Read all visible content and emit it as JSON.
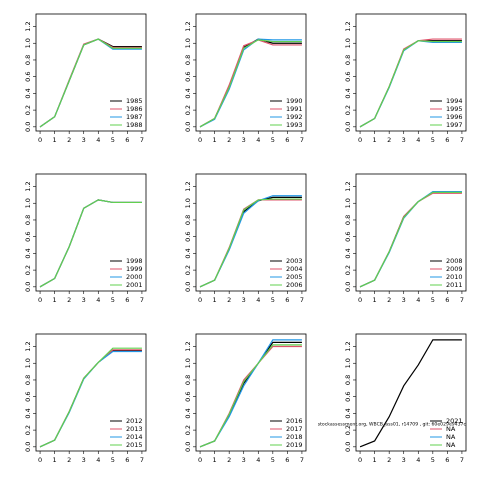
{
  "chart_data": [
    {
      "type": "line",
      "x": [
        0,
        1,
        2,
        3,
        4,
        5,
        6,
        7
      ],
      "xlim": [
        -0.28,
        7.28
      ],
      "ylim": [
        -0.05,
        1.35
      ],
      "xticks": [
        0,
        1,
        2,
        3,
        4,
        5,
        6,
        7
      ],
      "yticks": [
        {
          "value": 0,
          "label": "0.0"
        },
        {
          "value": 0.2,
          "label": "0.2"
        },
        {
          "value": 0.4,
          "label": "0.4"
        },
        {
          "value": 0.6,
          "label": "0.6"
        },
        {
          "value": 0.8,
          "label": "0.8"
        },
        {
          "value": 1.0,
          "label": "1.0"
        },
        {
          "value": 1.2,
          "label": "1.2"
        }
      ],
      "legend": "lower right",
      "series": [
        {
          "name": "1985",
          "color": "#000000",
          "values": [
            0,
            0.12,
            0.55,
            0.98,
            1.05,
            0.96,
            0.96,
            0.96
          ]
        },
        {
          "name": "1986",
          "color": "#df536b",
          "values": [
            0,
            0.12,
            0.56,
            0.99,
            1.05,
            0.95,
            0.95,
            0.95
          ]
        },
        {
          "name": "1987",
          "color": "#2297e6",
          "values": [
            0,
            0.12,
            0.55,
            0.98,
            1.05,
            0.93,
            0.93,
            0.93
          ]
        },
        {
          "name": "1988",
          "color": "#61d04f",
          "values": [
            0,
            0.12,
            0.55,
            0.98,
            1.05,
            0.94,
            0.94,
            0.94
          ]
        }
      ]
    },
    {
      "type": "line",
      "x": [
        0,
        1,
        2,
        3,
        4,
        5,
        6,
        7
      ],
      "xlim": [
        -0.28,
        7.28
      ],
      "ylim": [
        -0.05,
        1.35
      ],
      "xticks": [
        0,
        1,
        2,
        3,
        4,
        5,
        6,
        7
      ],
      "yticks": [
        {
          "value": 0,
          "label": "0.0"
        },
        {
          "value": 0.2,
          "label": "0.2"
        },
        {
          "value": 0.4,
          "label": "0.4"
        },
        {
          "value": 0.6,
          "label": "0.6"
        },
        {
          "value": 0.8,
          "label": "0.8"
        },
        {
          "value": 1.0,
          "label": "1.0"
        },
        {
          "value": 1.2,
          "label": "1.2"
        }
      ],
      "legend": "lower right",
      "series": [
        {
          "name": "1990",
          "color": "#000000",
          "values": [
            0,
            0.1,
            0.48,
            0.95,
            1.05,
            1.0,
            1.0,
            1.0
          ]
        },
        {
          "name": "1991",
          "color": "#df536b",
          "values": [
            0,
            0.1,
            0.5,
            0.97,
            1.04,
            0.98,
            0.98,
            0.98
          ]
        },
        {
          "name": "1992",
          "color": "#2297e6",
          "values": [
            0,
            0.09,
            0.45,
            0.92,
            1.05,
            1.04,
            1.04,
            1.04
          ]
        },
        {
          "name": "1993",
          "color": "#61d04f",
          "values": [
            0,
            0.1,
            0.47,
            0.94,
            1.04,
            1.02,
            1.02,
            1.02
          ]
        }
      ]
    },
    {
      "type": "line",
      "x": [
        0,
        1,
        2,
        3,
        4,
        5,
        6,
        7
      ],
      "xlim": [
        -0.28,
        7.28
      ],
      "ylim": [
        -0.05,
        1.35
      ],
      "xticks": [
        0,
        1,
        2,
        3,
        4,
        5,
        6,
        7
      ],
      "yticks": [
        {
          "value": 0,
          "label": "0.0"
        },
        {
          "value": 0.2,
          "label": "0.2"
        },
        {
          "value": 0.4,
          "label": "0.4"
        },
        {
          "value": 0.6,
          "label": "0.6"
        },
        {
          "value": 0.8,
          "label": "0.8"
        },
        {
          "value": 1.0,
          "label": "1.0"
        },
        {
          "value": 1.2,
          "label": "1.2"
        }
      ],
      "legend": "lower right",
      "series": [
        {
          "name": "1994",
          "color": "#000000",
          "values": [
            0,
            0.1,
            0.48,
            0.92,
            1.03,
            1.03,
            1.03,
            1.03
          ]
        },
        {
          "name": "1995",
          "color": "#df536b",
          "values": [
            0,
            0.1,
            0.48,
            0.93,
            1.03,
            1.05,
            1.05,
            1.05
          ]
        },
        {
          "name": "1996",
          "color": "#2297e6",
          "values": [
            0,
            0.1,
            0.47,
            0.91,
            1.03,
            1.01,
            1.01,
            1.01
          ]
        },
        {
          "name": "1997",
          "color": "#61d04f",
          "values": [
            0,
            0.1,
            0.48,
            0.92,
            1.03,
            1.02,
            1.02,
            1.02
          ]
        }
      ]
    },
    {
      "type": "line",
      "x": [
        0,
        1,
        2,
        3,
        4,
        5,
        6,
        7
      ],
      "xlim": [
        -0.28,
        7.28
      ],
      "ylim": [
        -0.05,
        1.35
      ],
      "xticks": [
        0,
        1,
        2,
        3,
        4,
        5,
        6,
        7
      ],
      "yticks": [
        {
          "value": 0,
          "label": "0.0"
        },
        {
          "value": 0.2,
          "label": "0.2"
        },
        {
          "value": 0.4,
          "label": "0.4"
        },
        {
          "value": 0.6,
          "label": "0.6"
        },
        {
          "value": 0.8,
          "label": "0.8"
        },
        {
          "value": 1.0,
          "label": "1.0"
        },
        {
          "value": 1.2,
          "label": "1.2"
        }
      ],
      "legend": "lower right",
      "series": [
        {
          "name": "1998",
          "color": "#000000",
          "values": [
            0,
            0.1,
            0.48,
            0.94,
            1.04,
            1.01,
            1.01,
            1.01
          ]
        },
        {
          "name": "1999",
          "color": "#df536b",
          "values": [
            0,
            0.1,
            0.48,
            0.94,
            1.04,
            1.01,
            1.01,
            1.01
          ]
        },
        {
          "name": "2000",
          "color": "#2297e6",
          "values": [
            0,
            0.1,
            0.48,
            0.94,
            1.04,
            1.01,
            1.01,
            1.01
          ]
        },
        {
          "name": "2001",
          "color": "#61d04f",
          "values": [
            0,
            0.1,
            0.48,
            0.94,
            1.04,
            1.01,
            1.01,
            1.01
          ]
        }
      ]
    },
    {
      "type": "line",
      "x": [
        0,
        1,
        2,
        3,
        4,
        5,
        6,
        7
      ],
      "xlim": [
        -0.28,
        7.28
      ],
      "ylim": [
        -0.05,
        1.35
      ],
      "xticks": [
        0,
        1,
        2,
        3,
        4,
        5,
        6,
        7
      ],
      "yticks": [
        {
          "value": 0,
          "label": "0.0"
        },
        {
          "value": 0.2,
          "label": "0.2"
        },
        {
          "value": 0.4,
          "label": "0.4"
        },
        {
          "value": 0.6,
          "label": "0.6"
        },
        {
          "value": 0.8,
          "label": "0.8"
        },
        {
          "value": 1.0,
          "label": "1.0"
        },
        {
          "value": 1.2,
          "label": "1.2"
        }
      ],
      "legend": "lower right",
      "series": [
        {
          "name": "2003",
          "color": "#000000",
          "values": [
            0,
            0.08,
            0.45,
            0.9,
            1.03,
            1.07,
            1.07,
            1.07
          ]
        },
        {
          "name": "2004",
          "color": "#df536b",
          "values": [
            0,
            0.08,
            0.47,
            0.93,
            1.04,
            1.04,
            1.04,
            1.04
          ]
        },
        {
          "name": "2005",
          "color": "#2297e6",
          "values": [
            0,
            0.08,
            0.44,
            0.88,
            1.03,
            1.09,
            1.09,
            1.09
          ]
        },
        {
          "name": "2006",
          "color": "#61d04f",
          "values": [
            0,
            0.08,
            0.46,
            0.92,
            1.04,
            1.05,
            1.05,
            1.05
          ]
        }
      ]
    },
    {
      "type": "line",
      "x": [
        0,
        1,
        2,
        3,
        4,
        5,
        6,
        7
      ],
      "xlim": [
        -0.28,
        7.28
      ],
      "ylim": [
        -0.05,
        1.35
      ],
      "xticks": [
        0,
        1,
        2,
        3,
        4,
        5,
        6,
        7
      ],
      "yticks": [
        {
          "value": 0,
          "label": "0.0"
        },
        {
          "value": 0.2,
          "label": "0.2"
        },
        {
          "value": 0.4,
          "label": "0.4"
        },
        {
          "value": 0.6,
          "label": "0.6"
        },
        {
          "value": 0.8,
          "label": "0.8"
        },
        {
          "value": 1.0,
          "label": "1.0"
        },
        {
          "value": 1.2,
          "label": "1.2"
        }
      ],
      "legend": "lower right",
      "series": [
        {
          "name": "2008",
          "color": "#000000",
          "values": [
            0,
            0.08,
            0.42,
            0.84,
            1.02,
            1.13,
            1.13,
            1.13
          ]
        },
        {
          "name": "2009",
          "color": "#df536b",
          "values": [
            0,
            0.08,
            0.42,
            0.84,
            1.02,
            1.12,
            1.12,
            1.12
          ]
        },
        {
          "name": "2010",
          "color": "#2297e6",
          "values": [
            0,
            0.08,
            0.41,
            0.82,
            1.02,
            1.14,
            1.14,
            1.14
          ]
        },
        {
          "name": "2011",
          "color": "#61d04f",
          "values": [
            0,
            0.08,
            0.42,
            0.83,
            1.02,
            1.13,
            1.13,
            1.13
          ]
        }
      ]
    },
    {
      "type": "line",
      "x": [
        0,
        1,
        2,
        3,
        4,
        5,
        6,
        7
      ],
      "xlim": [
        -0.28,
        7.28
      ],
      "ylim": [
        -0.05,
        1.35
      ],
      "xticks": [
        0,
        1,
        2,
        3,
        4,
        5,
        6,
        7
      ],
      "yticks": [
        {
          "value": 0,
          "label": "0.0"
        },
        {
          "value": 0.2,
          "label": "0.2"
        },
        {
          "value": 0.4,
          "label": "0.4"
        },
        {
          "value": 0.6,
          "label": "0.6"
        },
        {
          "value": 0.8,
          "label": "0.8"
        },
        {
          "value": 1.0,
          "label": "1.0"
        },
        {
          "value": 1.2,
          "label": "1.2"
        }
      ],
      "legend": "lower right",
      "series": [
        {
          "name": "2012",
          "color": "#000000",
          "values": [
            0,
            0.08,
            0.42,
            0.82,
            1.01,
            1.15,
            1.15,
            1.15
          ]
        },
        {
          "name": "2013",
          "color": "#df536b",
          "values": [
            0,
            0.08,
            0.42,
            0.82,
            1.01,
            1.16,
            1.16,
            1.16
          ]
        },
        {
          "name": "2014",
          "color": "#2297e6",
          "values": [
            0,
            0.08,
            0.41,
            0.81,
            1.01,
            1.14,
            1.14,
            1.14
          ]
        },
        {
          "name": "2015",
          "color": "#61d04f",
          "values": [
            0,
            0.08,
            0.42,
            0.82,
            1.01,
            1.18,
            1.18,
            1.18
          ]
        }
      ]
    },
    {
      "type": "line",
      "x": [
        0,
        1,
        2,
        3,
        4,
        5,
        6,
        7
      ],
      "xlim": [
        -0.28,
        7.28
      ],
      "ylim": [
        -0.05,
        1.35
      ],
      "xticks": [
        0,
        1,
        2,
        3,
        4,
        5,
        6,
        7
      ],
      "yticks": [
        {
          "value": 0,
          "label": "0.0"
        },
        {
          "value": 0.2,
          "label": "0.2"
        },
        {
          "value": 0.4,
          "label": "0.4"
        },
        {
          "value": 0.6,
          "label": "0.6"
        },
        {
          "value": 0.8,
          "label": "0.8"
        },
        {
          "value": 1.0,
          "label": "1.0"
        },
        {
          "value": 1.2,
          "label": "1.2"
        }
      ],
      "legend": "lower right",
      "series": [
        {
          "name": "2016",
          "color": "#000000",
          "values": [
            0,
            0.07,
            0.38,
            0.76,
            1.0,
            1.25,
            1.25,
            1.25
          ]
        },
        {
          "name": "2017",
          "color": "#df536b",
          "values": [
            0,
            0.07,
            0.4,
            0.8,
            1.0,
            1.2,
            1.2,
            1.2
          ]
        },
        {
          "name": "2018",
          "color": "#2297e6",
          "values": [
            0,
            0.07,
            0.36,
            0.73,
            1.0,
            1.28,
            1.28,
            1.28
          ]
        },
        {
          "name": "2019",
          "color": "#61d04f",
          "values": [
            0,
            0.07,
            0.39,
            0.78,
            1.0,
            1.22,
            1.22,
            1.22
          ]
        }
      ]
    },
    {
      "type": "line",
      "x": [
        0,
        1,
        2,
        3,
        4,
        5,
        6,
        7
      ],
      "xlim": [
        -0.28,
        7.28
      ],
      "ylim": [
        -0.05,
        1.35
      ],
      "xticks": [
        0,
        1,
        2,
        3,
        4,
        5,
        6,
        7
      ],
      "yticks": [
        {
          "value": 0,
          "label": "0.0"
        },
        {
          "value": 0.2,
          "label": "0.2"
        },
        {
          "value": 0.4,
          "label": "0.4"
        },
        {
          "value": 0.6,
          "label": "0.6"
        },
        {
          "value": 0.8,
          "label": "0.8"
        },
        {
          "value": 1.0,
          "label": "1.0"
        },
        {
          "value": 1.2,
          "label": "1.2"
        }
      ],
      "legend": "lower right",
      "annotation": "stockassessment.org, WBCB_ass01, r14709 , git: 60e029e9437c",
      "series": [
        {
          "name": "2021",
          "color": "#000000",
          "values": [
            0,
            0.07,
            0.36,
            0.73,
            0.98,
            1.28,
            1.28,
            1.28
          ]
        },
        {
          "name": "NA",
          "color": "#df536b",
          "values": [
            null,
            null,
            null,
            null,
            null,
            null,
            null,
            null
          ]
        },
        {
          "name": "NA",
          "color": "#2297e6",
          "values": [
            null,
            null,
            null,
            null,
            null,
            null,
            null,
            null
          ]
        },
        {
          "name": "NA",
          "color": "#61d04f",
          "values": [
            null,
            null,
            null,
            null,
            null,
            null,
            null,
            null
          ]
        }
      ]
    }
  ]
}
